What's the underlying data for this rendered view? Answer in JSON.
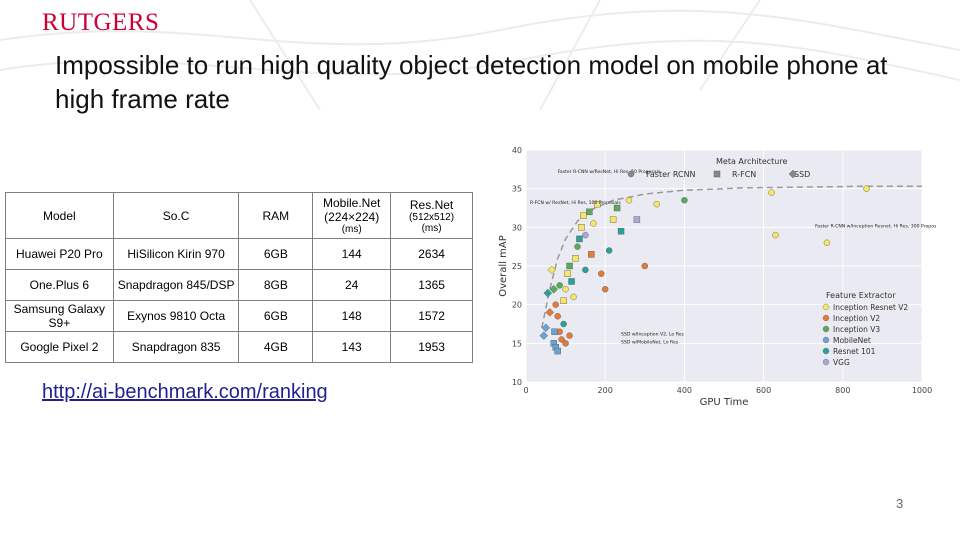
{
  "header": {
    "logo_text": "RUTGERS"
  },
  "slide": {
    "title": "Impossible to run high quality object detection model on mobile phone at high frame rate",
    "link_text": "http://ai-benchmark.com/ranking",
    "page_number": "3"
  },
  "table": {
    "headers": [
      {
        "main": "Model",
        "sub": ""
      },
      {
        "main": "So.C",
        "sub": ""
      },
      {
        "main": "RAM",
        "sub": ""
      },
      {
        "main": "Mobile.Net",
        "sub": "(224×224)",
        "sub2": "(ms)"
      },
      {
        "main": "Res.Net",
        "sub": "(512x512)",
        "sub2": "(ms)"
      }
    ],
    "rows": [
      [
        "Huawei P20 Pro",
        "HiSilicon Kirin 970",
        "6GB",
        "144",
        "2634"
      ],
      [
        "One.Plus 6",
        "Snapdragon 845/DSP",
        "8GB",
        "24",
        "1365"
      ],
      [
        "Samsung Galaxy S9+",
        "Exynos 9810 Octa",
        "6GB",
        "148",
        "1572"
      ],
      [
        "Google Pixel 2",
        "Snapdragon 835",
        "4GB",
        "143",
        "1953"
      ]
    ]
  },
  "chart_data": {
    "type": "scatter",
    "xlabel": "GPU Time",
    "ylabel": "Overall mAP",
    "xlim": [
      0,
      1000
    ],
    "ylim": [
      10,
      40
    ],
    "xticks": [
      0,
      200,
      400,
      600,
      800,
      1000
    ],
    "yticks": [
      10,
      15,
      20,
      25,
      30,
      35,
      40
    ],
    "legend_meta": {
      "title": "Meta Architecture",
      "entries": [
        {
          "name": "Faster RCNN",
          "marker": "circle"
        },
        {
          "name": "R-FCN",
          "marker": "square"
        },
        {
          "name": "SSD",
          "marker": "diamond"
        }
      ]
    },
    "legend_extractor": {
      "title": "Feature Extractor",
      "entries": [
        {
          "name": "Inception Resnet V2",
          "color": "#f5e663"
        },
        {
          "name": "Inception V2",
          "color": "#e07b39"
        },
        {
          "name": "Inception V3",
          "color": "#5aaa5a"
        },
        {
          "name": "MobileNet",
          "color": "#6ba3d6"
        },
        {
          "name": "Resnet 101",
          "color": "#2aa198"
        },
        {
          "name": "VGG",
          "color": "#a8a8d8"
        }
      ]
    },
    "annotations": [
      {
        "text": "Faster R-CNN w/ResNet, Hi Res, 50 Proposals",
        "x": 80,
        "y": 37
      },
      {
        "text": "R-FCN w/ ResNet, Hi Res, 100 Proposals",
        "x": 10,
        "y": 33
      },
      {
        "text": "Faster R-CNN w/Inception Resnet, Hi Res, 300 Proposals, Stride 8",
        "x": 730,
        "y": 30
      },
      {
        "text": "SSD w/Inception V2, Lo Res",
        "x": 240,
        "y": 16
      },
      {
        "text": "SSD w/MobileNet, Lo Res",
        "x": 240,
        "y": 15
      }
    ],
    "points": [
      {
        "x": 45,
        "y": 16.0,
        "c": 3,
        "m": 2
      },
      {
        "x": 50,
        "y": 17.0,
        "c": 3,
        "m": 2
      },
      {
        "x": 60,
        "y": 19.0,
        "c": 1,
        "m": 2
      },
      {
        "x": 55,
        "y": 21.5,
        "c": 4,
        "m": 2
      },
      {
        "x": 70,
        "y": 22.0,
        "c": 2,
        "m": 2
      },
      {
        "x": 65,
        "y": 24.5,
        "c": 0,
        "m": 2
      },
      {
        "x": 75,
        "y": 20.0,
        "c": 1,
        "m": 0
      },
      {
        "x": 80,
        "y": 18.5,
        "c": 1,
        "m": 0
      },
      {
        "x": 85,
        "y": 16.5,
        "c": 1,
        "m": 0
      },
      {
        "x": 90,
        "y": 15.5,
        "c": 1,
        "m": 0
      },
      {
        "x": 100,
        "y": 15.0,
        "c": 1,
        "m": 0
      },
      {
        "x": 95,
        "y": 17.5,
        "c": 4,
        "m": 0
      },
      {
        "x": 110,
        "y": 16.0,
        "c": 1,
        "m": 0
      },
      {
        "x": 70,
        "y": 15.0,
        "c": 3,
        "m": 1
      },
      {
        "x": 75,
        "y": 14.5,
        "c": 3,
        "m": 1
      },
      {
        "x": 80,
        "y": 14.0,
        "c": 3,
        "m": 1
      },
      {
        "x": 72,
        "y": 16.5,
        "c": 3,
        "m": 1
      },
      {
        "x": 95,
        "y": 20.5,
        "c": 0,
        "m": 1
      },
      {
        "x": 100,
        "y": 22.0,
        "c": 0,
        "m": 0
      },
      {
        "x": 105,
        "y": 24.0,
        "c": 0,
        "m": 1
      },
      {
        "x": 110,
        "y": 25.0,
        "c": 2,
        "m": 1
      },
      {
        "x": 115,
        "y": 23.0,
        "c": 4,
        "m": 1
      },
      {
        "x": 120,
        "y": 21.0,
        "c": 0,
        "m": 0
      },
      {
        "x": 125,
        "y": 26.0,
        "c": 0,
        "m": 1
      },
      {
        "x": 130,
        "y": 27.5,
        "c": 2,
        "m": 0
      },
      {
        "x": 135,
        "y": 28.5,
        "c": 4,
        "m": 1
      },
      {
        "x": 140,
        "y": 30.0,
        "c": 0,
        "m": 1
      },
      {
        "x": 145,
        "y": 31.5,
        "c": 0,
        "m": 1
      },
      {
        "x": 150,
        "y": 29.0,
        "c": 5,
        "m": 0
      },
      {
        "x": 160,
        "y": 32.0,
        "c": 2,
        "m": 1
      },
      {
        "x": 170,
        "y": 30.5,
        "c": 0,
        "m": 0
      },
      {
        "x": 180,
        "y": 33.0,
        "c": 0,
        "m": 1
      },
      {
        "x": 190,
        "y": 24.0,
        "c": 1,
        "m": 0
      },
      {
        "x": 200,
        "y": 22.0,
        "c": 1,
        "m": 0
      },
      {
        "x": 210,
        "y": 27.0,
        "c": 4,
        "m": 0
      },
      {
        "x": 220,
        "y": 31.0,
        "c": 0,
        "m": 1
      },
      {
        "x": 230,
        "y": 32.5,
        "c": 2,
        "m": 1
      },
      {
        "x": 240,
        "y": 29.5,
        "c": 4,
        "m": 1
      },
      {
        "x": 260,
        "y": 33.5,
        "c": 0,
        "m": 0
      },
      {
        "x": 280,
        "y": 31.0,
        "c": 5,
        "m": 1
      },
      {
        "x": 300,
        "y": 25.0,
        "c": 1,
        "m": 0
      },
      {
        "x": 330,
        "y": 33.0,
        "c": 0,
        "m": 0
      },
      {
        "x": 400,
        "y": 33.5,
        "c": 2,
        "m": 0
      },
      {
        "x": 620,
        "y": 34.5,
        "c": 0,
        "m": 0
      },
      {
        "x": 860,
        "y": 35.0,
        "c": 0,
        "m": 0
      },
      {
        "x": 630,
        "y": 29.0,
        "c": 0,
        "m": 0
      },
      {
        "x": 760,
        "y": 28.0,
        "c": 0,
        "m": 0
      },
      {
        "x": 150,
        "y": 24.5,
        "c": 4,
        "m": 0
      },
      {
        "x": 165,
        "y": 26.5,
        "c": 1,
        "m": 1
      },
      {
        "x": 85,
        "y": 22.5,
        "c": 2,
        "m": 0
      }
    ]
  }
}
